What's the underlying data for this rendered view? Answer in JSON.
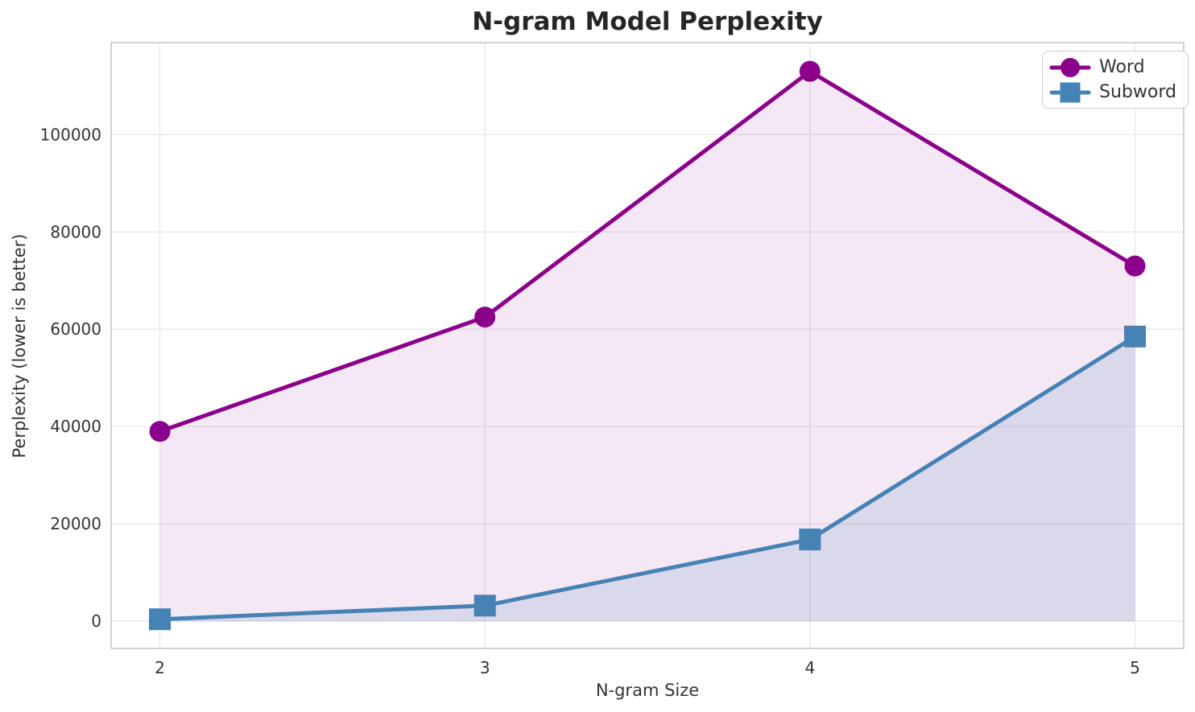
{
  "chart_data": {
    "type": "line",
    "title": "N-gram Model Perplexity",
    "xlabel": "N-gram Size",
    "ylabel": "Perplexity (lower is better)",
    "x": [
      2,
      3,
      4,
      5
    ],
    "xtick_labels": [
      "2",
      "3",
      "4",
      "5"
    ],
    "ytick_values": [
      0,
      20000,
      40000,
      60000,
      80000,
      100000
    ],
    "ytick_labels": [
      "0",
      "20000",
      "40000",
      "60000",
      "80000",
      "100000"
    ],
    "xlim": [
      1.85,
      5.15
    ],
    "ylim": [
      -5600,
      118900
    ],
    "grid": true,
    "legend_position": "upper right",
    "fill_baseline": 0,
    "series": [
      {
        "name": "Word",
        "marker": "circle",
        "color": "#8B008B",
        "fill_alpha": 0.09,
        "values": [
          39000,
          62500,
          113000,
          73000
        ]
      },
      {
        "name": "Subword",
        "marker": "square",
        "color": "#4682B4",
        "fill_alpha": 0.15,
        "values": [
          400,
          3200,
          16800,
          58500
        ]
      }
    ],
    "colors": {
      "grid": "#e8e8e8",
      "spine": "#c8c8c8",
      "title_text": "#262626",
      "tick_text": "#333333",
      "background": "#ffffff"
    }
  }
}
